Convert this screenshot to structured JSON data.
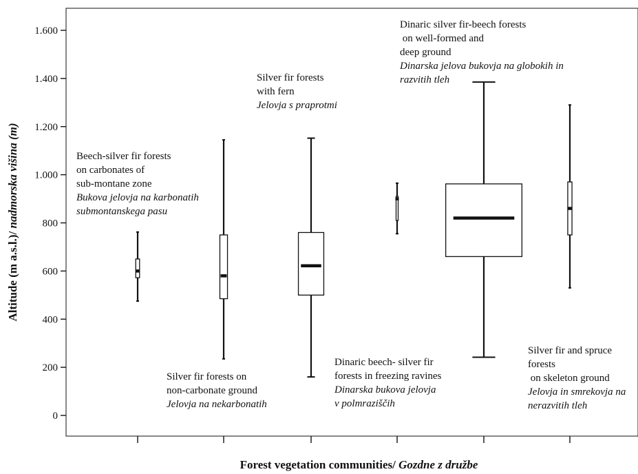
{
  "chart_data": {
    "type": "box",
    "title": "",
    "xlabel": {
      "main": "Forest vegetation communities/ ",
      "italic": "Gozdne z družbe"
    },
    "ylabel": {
      "main": "Altitude (m a.s.l.)/ ",
      "italic": "nadmorska višina (m)"
    },
    "ylim": [
      -90,
      1700
    ],
    "yticks": [
      0,
      200,
      400,
      600,
      800,
      1000,
      1200,
      1400,
      1600
    ],
    "ytick_labels": [
      "0",
      "200",
      "400",
      "600",
      "800",
      "1.000",
      "1.200",
      "1.400",
      "1.600"
    ],
    "grid": false,
    "categories": [
      "Beech-silver fir forests on carbonates of sub-montane zone",
      "Silver fir forests on non-carbonate ground",
      "Silver fir forests with fern",
      "Dinaric beech- silver fir forests in freezing ravines",
      "Dinaric silver fir-beech forests on well-formed and deep ground",
      "Silver fir and spruce forests on skeleton ground"
    ],
    "boxes": [
      {
        "min": 475,
        "q1": 572,
        "median": 600,
        "q3": 650,
        "max": 762,
        "rel_width": 0.045
      },
      {
        "min": 235,
        "q1": 485,
        "median": 580,
        "q3": 750,
        "max": 1145,
        "rel_width": 0.09
      },
      {
        "min": 160,
        "q1": 500,
        "median": 622,
        "q3": 760,
        "max": 1152,
        "rel_width": 0.3
      },
      {
        "min": 755,
        "q1": 810,
        "median": 900,
        "q3": 910,
        "max": 965,
        "rel_width": 0.02
      },
      {
        "min": 242,
        "q1": 660,
        "median": 820,
        "q3": 962,
        "max": 1385,
        "rel_width": 0.9
      },
      {
        "min": 530,
        "q1": 750,
        "median": 860,
        "q3": 970,
        "max": 1290,
        "rel_width": 0.05
      }
    ],
    "annotations": [
      {
        "lines": [
          "Beech-silver fir forests",
          "on carbonates of",
          "sub-montane  zone"
        ],
        "italic_lines": [
          "Bukova jelovja na karbonatih",
          "submontanskega pasu"
        ]
      },
      {
        "lines": [
          "Silver fir forests on",
          "non-carbonate ground"
        ],
        "italic_lines": [
          "Jelovja na nekarbonatih"
        ]
      },
      {
        "lines": [
          "Silver fir forests",
          "with fern"
        ],
        "italic_lines": [
          "Jelovja s praprotmi"
        ]
      },
      {
        "lines": [
          "Dinaric beech- silver fir",
          "forests in freezing ravines"
        ],
        "italic_lines": [
          "Dinarska bukova jelovja",
          "v polmraziščih"
        ]
      },
      {
        "lines": [
          "Dinaric silver fir-beech forests",
          " on  well-formed and",
          "deep ground"
        ],
        "italic_lines": [
          "Dinarska jelova bukovja na globokih in",
          "razvitih tleh"
        ]
      },
      {
        "lines": [
          "Silver fir and spruce",
          "forests",
          " on skeleton ground"
        ],
        "italic_lines": [
          "Jelovja in smrekovja na",
          "nerazvitih tleh"
        ]
      }
    ]
  }
}
